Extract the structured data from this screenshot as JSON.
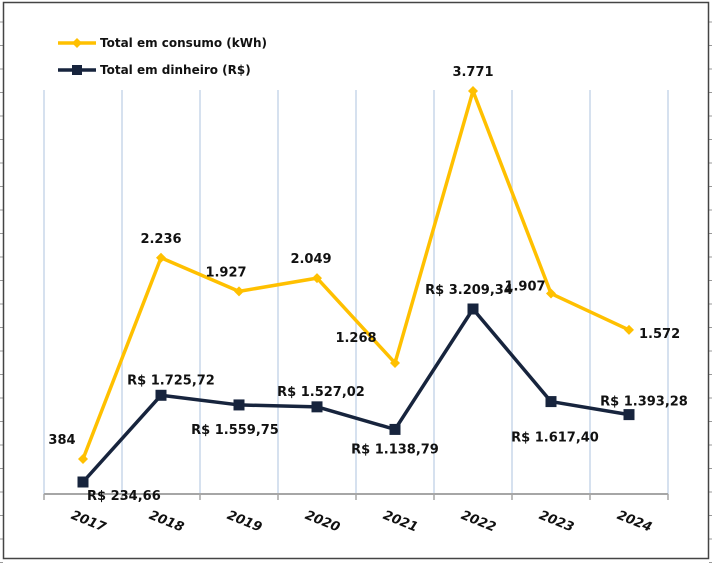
{
  "chart_data": {
    "type": "line",
    "title": "",
    "xlabel": "",
    "ylabel": "",
    "categories": [
      "2017",
      "2018",
      "2019",
      "2020",
      "2021",
      "2022",
      "2023",
      "2024"
    ],
    "series": [
      {
        "name": "Total em consumo (kWh)",
        "color": "#FFC000",
        "marker": "diamond",
        "values": [
          384,
          2236,
          1927,
          2049,
          1268,
          3771,
          1907,
          1572
        ],
        "labels": [
          "384",
          "2.236",
          "1.927",
          "2.049",
          "1.268",
          "3.771",
          "1.907",
          "1.572"
        ]
      },
      {
        "name": "Total em dinheiro (R$)",
        "color": "#17243D",
        "marker": "square",
        "values": [
          234.66,
          1725.72,
          1559.75,
          1527.02,
          1138.79,
          3209.34,
          1617.4,
          1393.28
        ],
        "labels": [
          "R$ 234,66",
          "R$ 1.725,72",
          "R$ 1.559,75",
          "R$ 1.527,02",
          "R$ 1.138,79",
          "R$ 3.209,34",
          "R$ 1.617,40",
          "R$ 1.393,28"
        ]
      }
    ],
    "legend": {
      "position": "top-left"
    },
    "grid": {
      "vertical": true,
      "horizontal": false,
      "color": "#C9D7EA"
    },
    "axis": {
      "y_visible": false,
      "x_color": "#A6A6A6"
    }
  }
}
